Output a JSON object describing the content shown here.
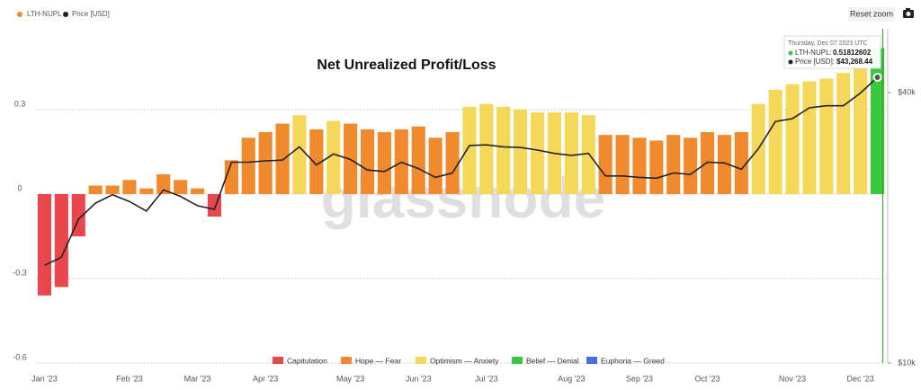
{
  "chart_data": {
    "type": "bar",
    "title": "Net Unrealized Profit/Loss",
    "watermark": "glassnode",
    "reset_button": "Reset zoom",
    "categories": [
      "Jan '23",
      null,
      null,
      null,
      null,
      "Feb '23",
      null,
      null,
      null,
      "Mar '23",
      null,
      null,
      null,
      "Apr '23",
      null,
      null,
      null,
      null,
      "May '23",
      null,
      null,
      null,
      "Jun '23",
      null,
      null,
      null,
      "Jul '23",
      null,
      null,
      null,
      null,
      "Aug '23",
      null,
      null,
      null,
      "Sep '23",
      null,
      null,
      null,
      "Oct '23",
      null,
      null,
      null,
      null,
      "Nov '23",
      null,
      null,
      null,
      "Dec '23",
      null
    ],
    "series": [
      {
        "name": "LTH-NUPL",
        "color": "#f08a2c",
        "values": [
          -0.36,
          -0.33,
          -0.15,
          0.03,
          0.03,
          0.05,
          0.02,
          0.07,
          0.05,
          0.02,
          -0.08,
          0.12,
          0.2,
          0.22,
          0.25,
          0.28,
          0.23,
          0.26,
          0.25,
          0.23,
          0.22,
          0.23,
          0.24,
          0.2,
          0.22,
          0.31,
          0.32,
          0.31,
          0.3,
          0.29,
          0.29,
          0.29,
          0.28,
          0.21,
          0.21,
          0.2,
          0.19,
          0.21,
          0.2,
          0.22,
          0.21,
          0.22,
          0.32,
          0.37,
          0.39,
          0.4,
          0.41,
          0.43,
          0.48,
          0.51812602
        ]
      },
      {
        "name": "Price [USD]",
        "color": "#222222",
        "axis": "y2",
        "values": [
          16500,
          17200,
          20900,
          22700,
          23700,
          22900,
          21800,
          24300,
          23500,
          22400,
          22000,
          28000,
          28000,
          28200,
          28300,
          30300,
          27600,
          29200,
          28400,
          26900,
          26700,
          28000,
          27100,
          25900,
          26500,
          30500,
          30600,
          30300,
          30200,
          29800,
          29300,
          29000,
          29300,
          26100,
          26100,
          25900,
          25800,
          26500,
          26300,
          28000,
          27900,
          27000,
          30000,
          34500,
          35000,
          37000,
          37400,
          37400,
          39900,
          43268.44
        ]
      }
    ],
    "zones": [
      {
        "name": "Capitulation",
        "color": "#e8474e",
        "max": 0
      },
      {
        "name": "Hope — Fear",
        "color": "#f08a2c",
        "max": 0.25
      },
      {
        "name": "Optimism — Anxiety",
        "color": "#f5d75a",
        "max": 0.5
      },
      {
        "name": "Belief — Denial",
        "color": "#3cc83c",
        "max": 0.75
      },
      {
        "name": "Euphoria — Greed",
        "color": "#4a6fe3",
        "max": 1
      }
    ],
    "ylim": [
      -0.6,
      0.587
    ],
    "yticks": [
      -0.6,
      -0.3,
      0,
      0.3
    ],
    "y2lim": [
      10000,
      55500
    ],
    "y2scale": "log",
    "y2ticks": [
      {
        "value": 10000,
        "label": "$10k"
      },
      {
        "value": 40000,
        "label": "$40k"
      }
    ],
    "grid": true,
    "tooltip": {
      "date": "Thursday, Dec 07 2023 UTC",
      "items": [
        {
          "label": "LTH-NUPL:",
          "value_label": "0.51812602"
        },
        {
          "label": "Price [USD]:",
          "value_label": "$43,268.44"
        }
      ]
    }
  }
}
